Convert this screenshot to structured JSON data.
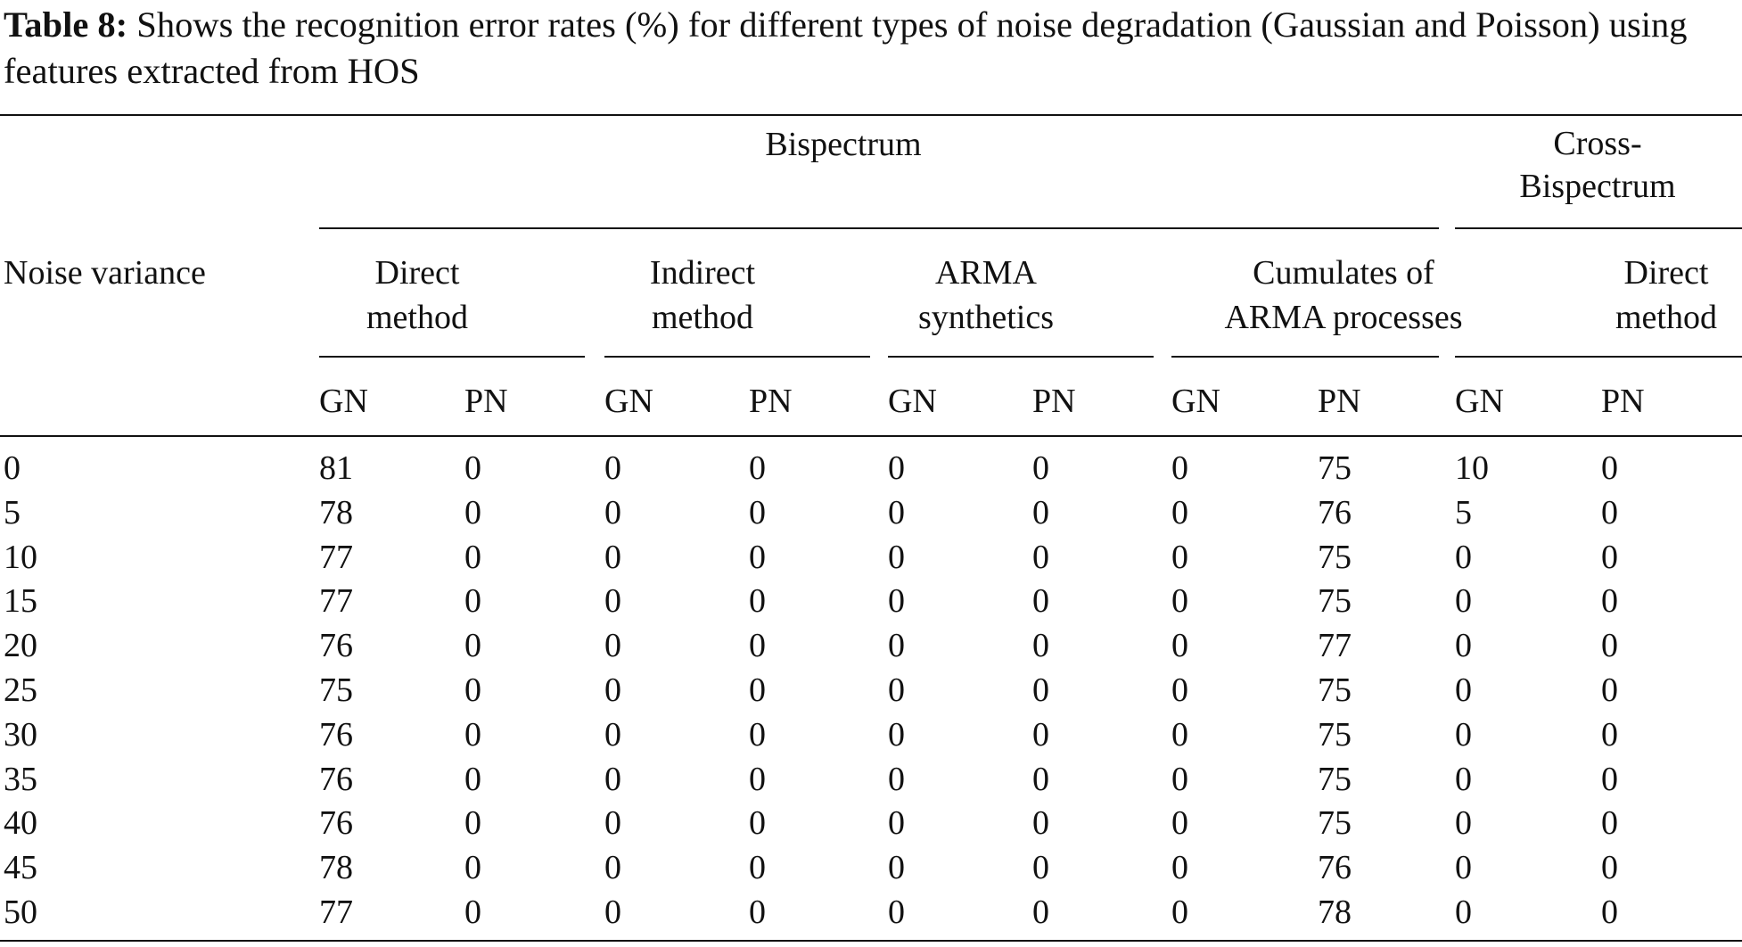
{
  "caption": {
    "label": "Table 8:",
    "text": " Shows the recognition error rates (%) for different types of noise degradation (Gaussian and Poisson) using features extracted from HOS"
  },
  "table": {
    "row_header": "Noise variance",
    "groups": {
      "bispectrum": "Bispectrum",
      "cross_bispectrum": "Cross-\nBispectrum"
    },
    "methods": [
      {
        "line1": "Direct",
        "line2": "method"
      },
      {
        "line1": "Indirect",
        "line2": "method"
      },
      {
        "line1": "ARMA",
        "line2": "synthetics"
      },
      {
        "line1": "Cumulates of",
        "line2": "ARMA processes"
      },
      {
        "line1": "Direct",
        "line2": "method"
      }
    ],
    "subheaders": [
      "GN",
      "PN",
      "GN",
      "PN",
      "GN",
      "PN",
      "GN",
      "PN",
      "GN",
      "PN"
    ],
    "rows": [
      [
        "0",
        "81",
        "0",
        "0",
        "0",
        "0",
        "0",
        "0",
        "75",
        "10",
        "0"
      ],
      [
        "5",
        "78",
        "0",
        "0",
        "0",
        "0",
        "0",
        "0",
        "76",
        "5",
        "0"
      ],
      [
        "10",
        "77",
        "0",
        "0",
        "0",
        "0",
        "0",
        "0",
        "75",
        "0",
        "0"
      ],
      [
        "15",
        "77",
        "0",
        "0",
        "0",
        "0",
        "0",
        "0",
        "75",
        "0",
        "0"
      ],
      [
        "20",
        "76",
        "0",
        "0",
        "0",
        "0",
        "0",
        "0",
        "77",
        "0",
        "0"
      ],
      [
        "25",
        "75",
        "0",
        "0",
        "0",
        "0",
        "0",
        "0",
        "75",
        "0",
        "0"
      ],
      [
        "30",
        "76",
        "0",
        "0",
        "0",
        "0",
        "0",
        "0",
        "75",
        "0",
        "0"
      ],
      [
        "35",
        "76",
        "0",
        "0",
        "0",
        "0",
        "0",
        "0",
        "75",
        "0",
        "0"
      ],
      [
        "40",
        "76",
        "0",
        "0",
        "0",
        "0",
        "0",
        "0",
        "75",
        "0",
        "0"
      ],
      [
        "45",
        "78",
        "0",
        "0",
        "0",
        "0",
        "0",
        "0",
        "76",
        "0",
        "0"
      ],
      [
        "50",
        "77",
        "0",
        "0",
        "0",
        "0",
        "0",
        "0",
        "78",
        "0",
        "0"
      ]
    ]
  }
}
